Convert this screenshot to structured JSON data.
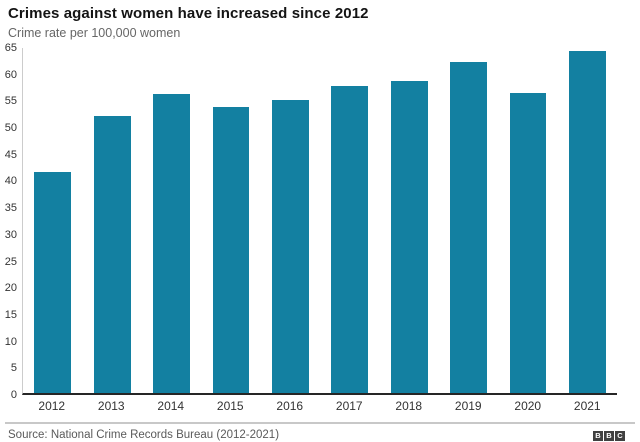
{
  "header": {
    "title": "Crimes against women have increased since 2012",
    "subtitle": "Crime rate per 100,000 women"
  },
  "chart_data": {
    "type": "bar",
    "title": "Crimes against women have increased since 2012",
    "subtitle": "Crime rate per 100,000 women",
    "categories": [
      "2012",
      "2013",
      "2014",
      "2015",
      "2016",
      "2017",
      "2018",
      "2019",
      "2020",
      "2021"
    ],
    "values": [
      41.7,
      52.2,
      56.3,
      53.9,
      55.2,
      57.9,
      58.8,
      62.4,
      56.5,
      64.5
    ],
    "xlabel": "",
    "ylabel": "Crime rate per 100,000 women",
    "ylim": [
      0,
      65
    ],
    "ytick_step": 5,
    "yticks": [
      0,
      5,
      10,
      15,
      20,
      25,
      30,
      35,
      40,
      45,
      50,
      55,
      60,
      65
    ],
    "grid": false,
    "legend": "none",
    "bar_color": "#1380A1"
  },
  "footer": {
    "source": "Source: National Crime Records Bureau (2012-2021)",
    "logo_letters": [
      "B",
      "B",
      "C"
    ]
  },
  "colors": {
    "bar": "#1380A1",
    "title_text": "#141414",
    "subtitle_text": "#666666",
    "tick_text": "#333333",
    "x_axis_line": "#262626",
    "y_axis_line": "#cccccc",
    "divider": "#c8c8c8",
    "source_text": "#5a5a5a",
    "logo_bg": "#404040"
  }
}
